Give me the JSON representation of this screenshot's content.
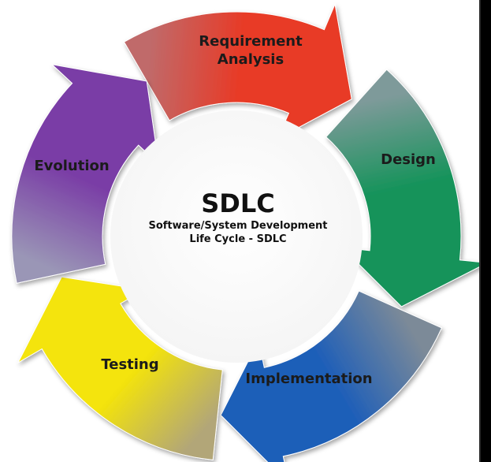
{
  "diagram": {
    "title": "SDLC",
    "subtitle_line1": "Software/System Development",
    "subtitle_line2": "Life Cycle - SDLC",
    "stages": [
      {
        "label_line1": "Requirement",
        "label_line2": "Analysis",
        "color": "#e83a26",
        "color_end": "#c06a6a"
      },
      {
        "label_line1": "Design",
        "label_line2": "",
        "color": "#15935a",
        "color_end": "#7e9a9a"
      },
      {
        "label_line1": "Implementation",
        "label_line2": "",
        "color": "#1f5fb8",
        "color_end": "#7c8a98"
      },
      {
        "label_line1": "Testing",
        "label_line2": "",
        "color": "#f4e40a",
        "color_end": "#b2a678"
      },
      {
        "label_line1": "Evolution",
        "label_line2": "",
        "color": "#7a3ea6",
        "color_end": "#9a96b6"
      }
    ]
  }
}
